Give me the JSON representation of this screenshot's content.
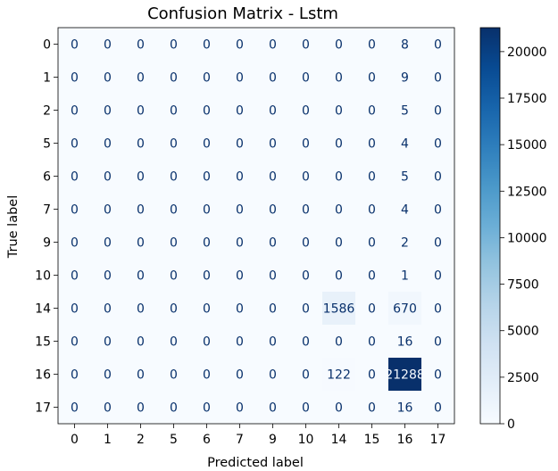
{
  "chart_data": {
    "type": "heatmap",
    "title": "Confusion Matrix - Lstm",
    "xlabel": "Predicted label",
    "ylabel": "True label",
    "row_labels": [
      "0",
      "1",
      "2",
      "5",
      "6",
      "7",
      "9",
      "10",
      "14",
      "15",
      "16",
      "17"
    ],
    "col_labels": [
      "0",
      "1",
      "2",
      "5",
      "6",
      "7",
      "9",
      "10",
      "14",
      "15",
      "16",
      "17"
    ],
    "values": [
      [
        0,
        0,
        0,
        0,
        0,
        0,
        0,
        0,
        0,
        0,
        8,
        0
      ],
      [
        0,
        0,
        0,
        0,
        0,
        0,
        0,
        0,
        0,
        0,
        9,
        0
      ],
      [
        0,
        0,
        0,
        0,
        0,
        0,
        0,
        0,
        0,
        0,
        5,
        0
      ],
      [
        0,
        0,
        0,
        0,
        0,
        0,
        0,
        0,
        0,
        0,
        4,
        0
      ],
      [
        0,
        0,
        0,
        0,
        0,
        0,
        0,
        0,
        0,
        0,
        5,
        0
      ],
      [
        0,
        0,
        0,
        0,
        0,
        0,
        0,
        0,
        0,
        0,
        4,
        0
      ],
      [
        0,
        0,
        0,
        0,
        0,
        0,
        0,
        0,
        0,
        0,
        2,
        0
      ],
      [
        0,
        0,
        0,
        0,
        0,
        0,
        0,
        0,
        0,
        0,
        1,
        0
      ],
      [
        0,
        0,
        0,
        0,
        0,
        0,
        0,
        0,
        1586,
        0,
        670,
        0
      ],
      [
        0,
        0,
        0,
        0,
        0,
        0,
        0,
        0,
        0,
        0,
        16,
        0
      ],
      [
        0,
        0,
        0,
        0,
        0,
        0,
        0,
        0,
        122,
        0,
        21288,
        0
      ],
      [
        0,
        0,
        0,
        0,
        0,
        0,
        0,
        0,
        0,
        0,
        16,
        0
      ]
    ],
    "colormap": "Blues",
    "colorbar_range": [
      0,
      21288
    ],
    "colorbar_ticks": [
      0,
      2500,
      5000,
      7500,
      10000,
      12500,
      15000,
      17500,
      20000
    ],
    "colors": {
      "low": "#f7fbff",
      "high": "#08306b",
      "text_dark": "#08306b",
      "text_light": "#f7fbff"
    }
  }
}
